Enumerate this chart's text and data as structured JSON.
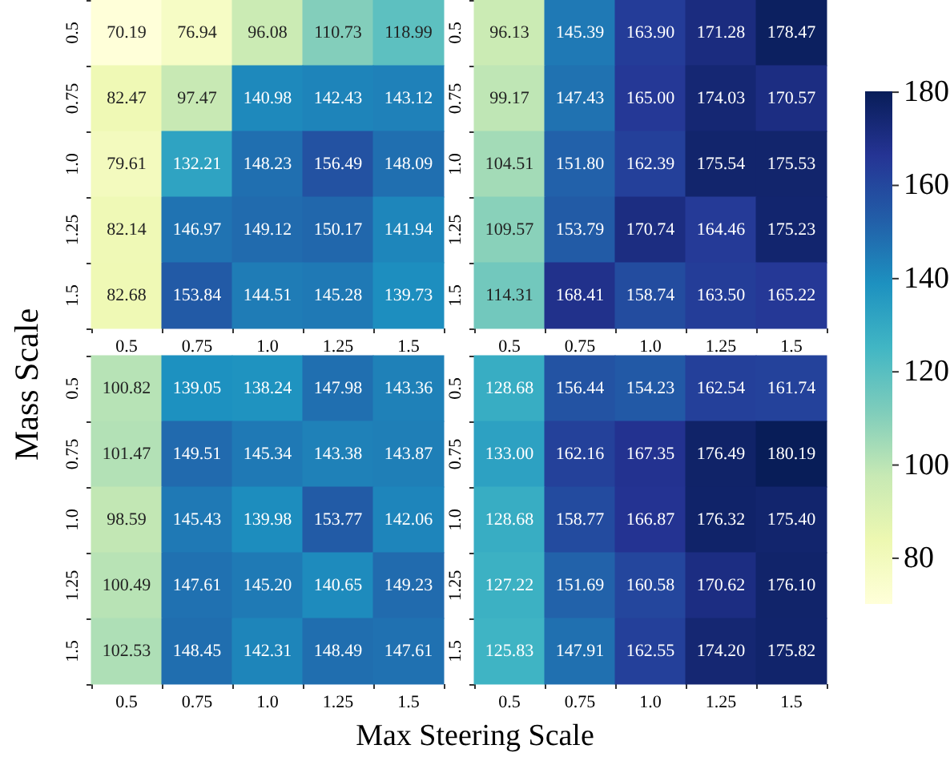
{
  "chart_data": [
    {
      "type": "heatmap",
      "categories": [
        "0.5",
        "0.75",
        "1.0",
        "1.25",
        "1.5"
      ],
      "y_categories": [
        "0.5",
        "0.75",
        "1.0",
        "1.25",
        "1.5"
      ],
      "cells": [
        [
          70.19,
          76.94,
          96.08,
          110.73,
          118.99
        ],
        [
          82.47,
          97.47,
          140.98,
          142.43,
          143.12
        ],
        [
          79.61,
          132.21,
          148.23,
          156.49,
          148.09
        ],
        [
          82.14,
          146.97,
          149.12,
          150.17,
          141.94
        ],
        [
          82.68,
          153.84,
          144.51,
          145.28,
          139.73
        ]
      ],
      "data_labels": true
    },
    {
      "type": "heatmap",
      "categories": [
        "0.5",
        "0.75",
        "1.0",
        "1.25",
        "1.5"
      ],
      "y_categories": [
        "0.5",
        "0.75",
        "1.0",
        "1.25",
        "1.5"
      ],
      "cells": [
        [
          96.13,
          145.39,
          163.9,
          171.28,
          178.47
        ],
        [
          99.17,
          147.43,
          165.0,
          174.03,
          170.57
        ],
        [
          104.51,
          151.8,
          162.39,
          175.54,
          175.53
        ],
        [
          109.57,
          153.79,
          170.74,
          164.46,
          175.23
        ],
        [
          114.31,
          168.41,
          158.74,
          163.5,
          165.22
        ]
      ],
      "cell_labels": [
        [
          "96.13",
          "145.39",
          "163.90",
          "171.28",
          "178.47"
        ],
        [
          "99.17",
          "147.43",
          "165.00",
          "174.03",
          "170.57"
        ],
        [
          "104.51",
          "151.80",
          "162.39",
          "175.54",
          "175.53"
        ],
        [
          "109.57",
          "153.79",
          "170.74",
          "164.46",
          "175.23"
        ],
        [
          "114.31",
          "168.41",
          "158.74",
          "163.50",
          "165.22"
        ]
      ],
      "clim": [
        70.19,
        180.19
      ],
      "cticks": [
        80,
        100,
        120,
        140,
        160,
        180
      ],
      "data_labels": true
    },
    {
      "type": "heatmap",
      "xlabel": "Max Steering Scale",
      "ylabel": "Mass Scale",
      "categories": [
        "0.5",
        "0.75",
        "1.0",
        "1.25",
        "1.5"
      ],
      "y_categories": [
        "0.5",
        "0.75",
        "1.0",
        "1.25",
        "1.5"
      ],
      "cells": [
        [
          100.82,
          139.05,
          138.24,
          147.98,
          143.36
        ],
        [
          101.47,
          149.51,
          145.34,
          143.38,
          143.87
        ],
        [
          98.59,
          145.43,
          139.98,
          153.77,
          142.06
        ],
        [
          100.49,
          147.61,
          145.2,
          140.65,
          149.23
        ],
        [
          102.53,
          148.45,
          142.31,
          148.49,
          147.61
        ]
      ],
      "cell_labels": [
        [
          "100.82",
          "139.05",
          "138.24",
          "147.98",
          "143.36"
        ],
        [
          "101.47",
          "149.51",
          "145.34",
          "143.38",
          "143.87"
        ],
        [
          "98.59",
          "145.43",
          "139.98",
          "153.77",
          "142.06"
        ],
        [
          "100.49",
          "147.61",
          "145.20",
          "140.65",
          "149.23"
        ],
        [
          "102.53",
          "148.45",
          "142.31",
          "148.49",
          "147.61"
        ]
      ],
      "data_labels": true
    },
    {
      "type": "heatmap",
      "categories": [
        "0.5",
        "0.75",
        "1.0",
        "1.25",
        "1.5"
      ],
      "y_categories": [
        "0.5",
        "0.75",
        "1.0",
        "1.25",
        "1.5"
      ],
      "cells": [
        [
          128.68,
          156.44,
          154.23,
          162.54,
          161.74
        ],
        [
          133.0,
          162.16,
          167.35,
          176.49,
          180.19
        ],
        [
          128.68,
          158.77,
          166.87,
          176.32,
          175.4
        ],
        [
          127.22,
          151.69,
          160.58,
          170.62,
          176.1
        ],
        [
          125.83,
          147.91,
          162.55,
          174.2,
          175.82
        ]
      ],
      "cell_labels": [
        [
          "128.68",
          "156.44",
          "154.23",
          "162.54",
          "161.74"
        ],
        [
          "133.00",
          "162.16",
          "167.35",
          "176.49",
          "180.19"
        ],
        [
          "128.68",
          "158.77",
          "166.87",
          "176.32",
          "175.40"
        ],
        [
          "127.22",
          "151.69",
          "160.58",
          "170.62",
          "176.10"
        ],
        [
          "125.83",
          "147.91",
          "162.55",
          "174.20",
          "175.82"
        ]
      ],
      "data_labels": true
    }
  ]
}
